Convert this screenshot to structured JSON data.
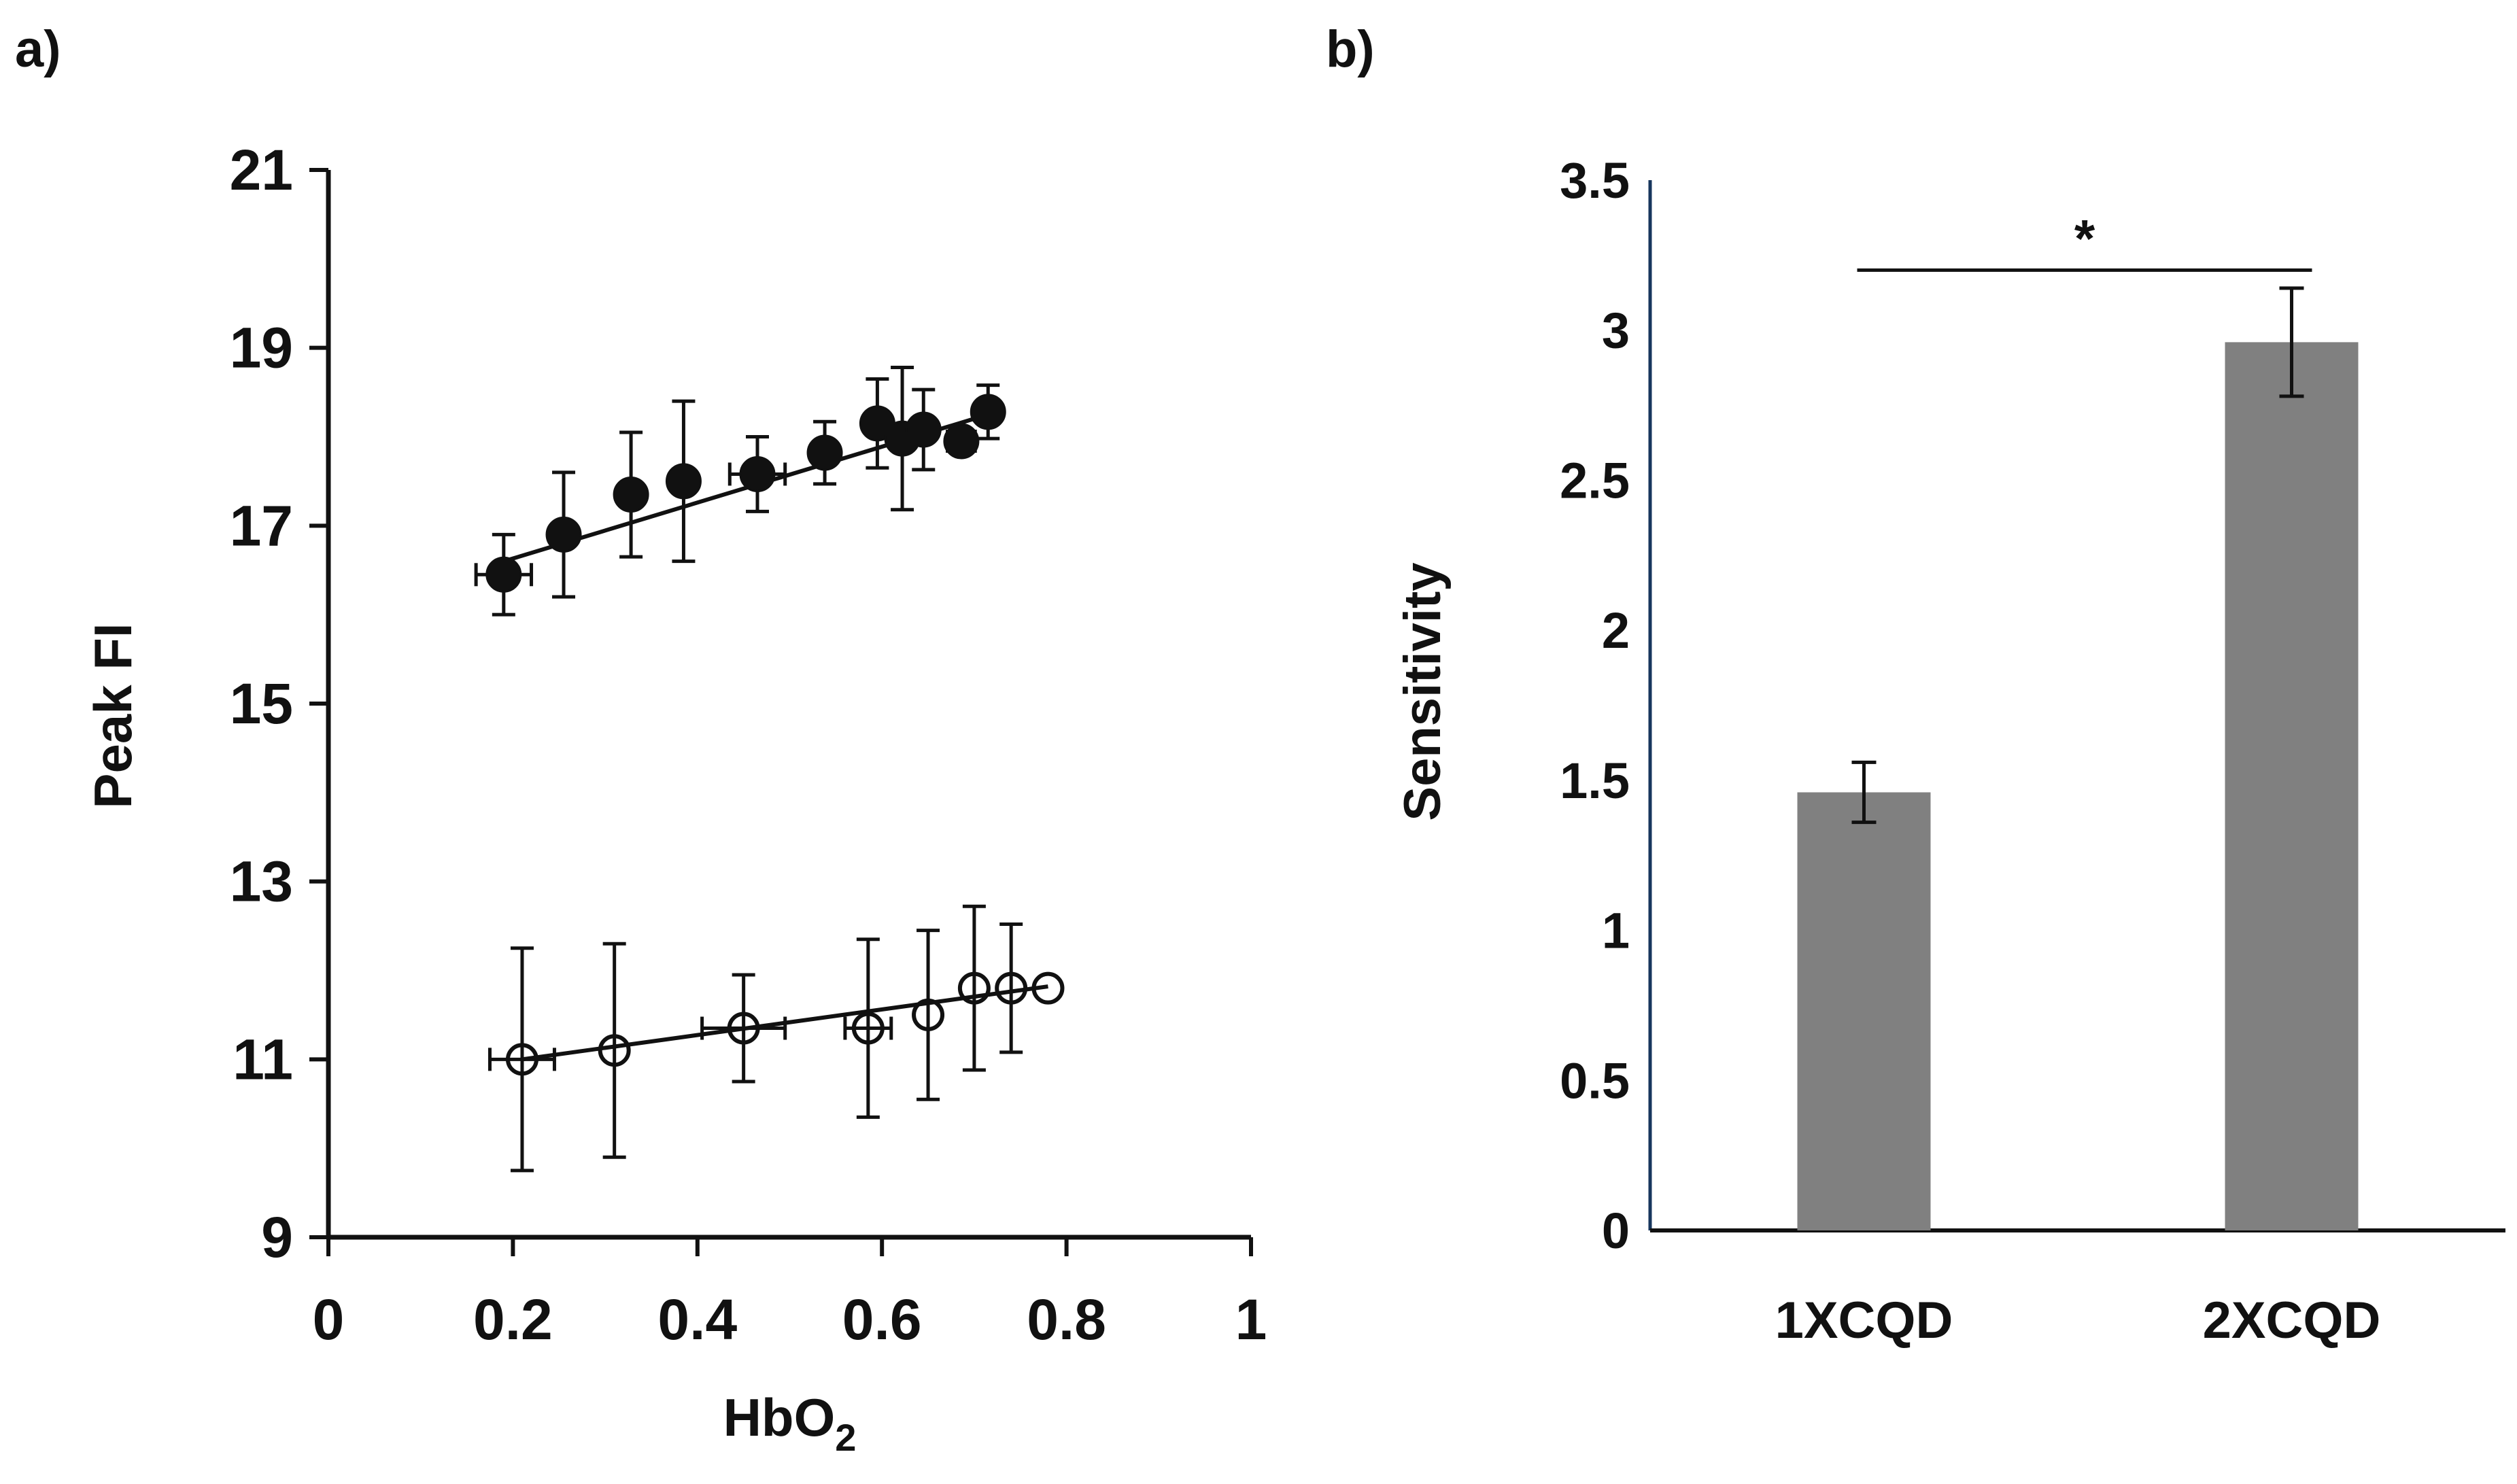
{
  "chart_data": [
    {
      "panel": "a)",
      "type": "scatter",
      "title": "",
      "xlabel": "HbO",
      "xlabel_subscript": "2",
      "ylabel": "Peak FI",
      "xlim": [
        0,
        1
      ],
      "ylim": [
        9,
        21
      ],
      "xticks": [
        0,
        0.2,
        0.4,
        0.6,
        0.8,
        1
      ],
      "xtick_labels": [
        "0",
        "0.2",
        "0.4",
        "0.6",
        "0.8",
        "1"
      ],
      "yticks": [
        9,
        11,
        13,
        15,
        17,
        19,
        21
      ],
      "ytick_labels": [
        "9",
        "11",
        "13",
        "15",
        "17",
        "19",
        "21"
      ],
      "grid": false,
      "series": [
        {
          "name": "filled",
          "marker": "filled-circle",
          "x": [
            0.19,
            0.255,
            0.328,
            0.385,
            0.465,
            0.538,
            0.595,
            0.622,
            0.645,
            0.686,
            0.715
          ],
          "y": [
            16.45,
            16.9,
            17.35,
            17.5,
            17.58,
            17.82,
            18.15,
            17.98,
            18.08,
            17.95,
            18.28
          ],
          "yerr": [
            0.45,
            0.7,
            0.7,
            0.9,
            0.42,
            0.35,
            0.5,
            0.8,
            0.45,
            0.12,
            0.3
          ],
          "xerr": [
            0.03,
            0.0,
            0.0,
            0.0,
            0.03,
            0.0,
            0.0,
            0.0,
            0.0,
            0.015,
            0.0
          ],
          "fit": {
            "x": [
              0.19,
              0.715
            ],
            "y": [
              16.6,
              18.25
            ]
          }
        },
        {
          "name": "open",
          "marker": "open-circle",
          "x": [
            0.21,
            0.31,
            0.45,
            0.585,
            0.65,
            0.7,
            0.74,
            0.78
          ],
          "y": [
            11.0,
            11.1,
            11.35,
            11.35,
            11.5,
            11.8,
            11.8,
            11.8
          ],
          "yerr": [
            1.25,
            1.2,
            0.6,
            1.0,
            0.95,
            0.92,
            0.72,
            0.0
          ],
          "xerr": [
            0.035,
            0.0,
            0.045,
            0.025,
            0.0,
            0.0,
            0.0,
            0.0
          ],
          "fit": {
            "x": [
              0.21,
              0.78
            ],
            "y": [
              11.0,
              11.82
            ]
          }
        }
      ]
    },
    {
      "panel": "b)",
      "type": "bar",
      "title": "",
      "xlabel": "",
      "ylabel": "Sensitivity",
      "categories": [
        "1XCQD",
        "2XCQD"
      ],
      "values": [
        1.46,
        2.96
      ],
      "errors": [
        0.1,
        0.18
      ],
      "bar_color": "#808080",
      "ylim": [
        0,
        3.5
      ],
      "yticks": [
        0,
        0.5,
        1,
        1.5,
        2,
        2.5,
        3,
        3.5
      ],
      "ytick_labels": [
        "0",
        "0.5",
        "1",
        "1.5",
        "2",
        "2.5",
        "3",
        "3.5"
      ],
      "grid": false,
      "significance": {
        "pair": [
          0,
          1
        ],
        "label": "*"
      }
    }
  ]
}
